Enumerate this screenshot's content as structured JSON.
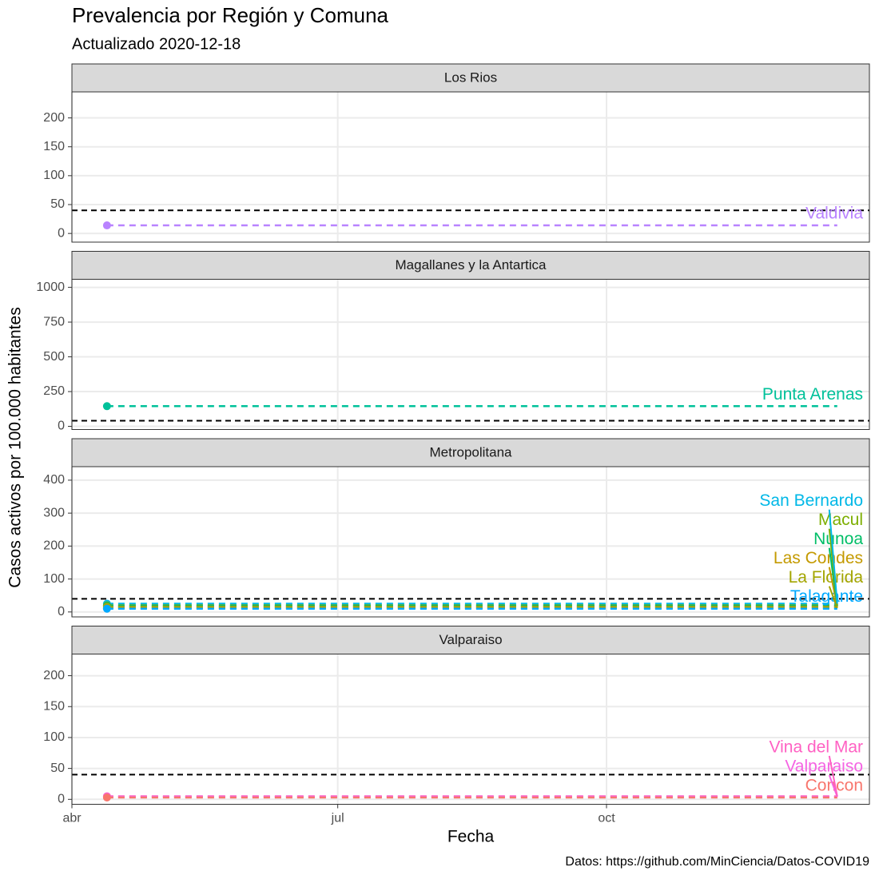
{
  "title": "Prevalencia por Región y Comuna",
  "subtitle": "Actualizado 2020-12-18",
  "x_label": "Fecha",
  "y_label": "Casos activos por 100.000 habitantes",
  "caption": "Datos: https://github.com/MinCiencia/Datos-COVID19",
  "xlim": [
    91,
    364
  ],
  "xticks": [
    {
      "value": 91,
      "label": "abr"
    },
    {
      "value": 182,
      "label": "jul"
    },
    {
      "value": 274,
      "label": "oct"
    }
  ],
  "chart_data": [
    {
      "type": "line",
      "facet": "Los Rios",
      "ylim": [
        -15,
        245
      ],
      "yticks": [
        0,
        50,
        100,
        150,
        200
      ],
      "reference_line": 40,
      "grid": true,
      "series": [
        {
          "name": "Valdivia",
          "color": "#b983ff",
          "x": [
            103,
            353
          ],
          "values": [
            14,
            14
          ]
        }
      ]
    },
    {
      "type": "line",
      "facet": "Magallanes y la Antartica",
      "ylim": [
        -23,
        1058
      ],
      "yticks": [
        0,
        250,
        500,
        750,
        1000
      ],
      "reference_line": 40,
      "grid": true,
      "series": [
        {
          "name": "Punta Arenas",
          "color": "#00c19a",
          "x": [
            103,
            353
          ],
          "values": [
            145,
            145
          ]
        }
      ]
    },
    {
      "type": "line",
      "facet": "Metropolitana",
      "ylim": [
        -15,
        441
      ],
      "yticks": [
        0,
        100,
        200,
        300,
        400
      ],
      "reference_line": 40,
      "grid": true,
      "series": [
        {
          "name": "San Bernardo",
          "color": "#00b8e7",
          "x": [
            103,
            353
          ],
          "values": [
            25,
            25
          ]
        },
        {
          "name": "Macul",
          "color": "#7cae00",
          "x": [
            103,
            353
          ],
          "values": [
            20,
            20
          ]
        },
        {
          "name": "Nunoa",
          "color": "#00be67",
          "x": [
            103,
            353
          ],
          "values": [
            18,
            18
          ]
        },
        {
          "name": "Las Condes",
          "color": "#c49a00",
          "x": [
            103,
            353
          ],
          "values": [
            15,
            15
          ]
        },
        {
          "name": "La Florida",
          "color": "#a3a500",
          "x": [
            103,
            353
          ],
          "values": [
            12,
            12
          ]
        },
        {
          "name": "Talagante",
          "color": "#00a9ff",
          "x": [
            103,
            353
          ],
          "values": [
            10,
            10
          ]
        }
      ]
    },
    {
      "type": "line",
      "facet": "Valparaiso",
      "ylim": [
        -8,
        235
      ],
      "yticks": [
        0,
        50,
        100,
        150,
        200
      ],
      "reference_line": 40,
      "grid": true,
      "series": [
        {
          "name": "Vina del Mar",
          "color": "#ff61c3",
          "x": [
            103,
            353
          ],
          "values": [
            5,
            5
          ]
        },
        {
          "name": "Valparaiso",
          "color": "#f564e3",
          "x": [
            103,
            353
          ],
          "values": [
            4,
            4
          ]
        },
        {
          "name": "Concon",
          "color": "#f8766d",
          "x": [
            103,
            353
          ],
          "values": [
            3,
            3
          ]
        }
      ]
    }
  ]
}
